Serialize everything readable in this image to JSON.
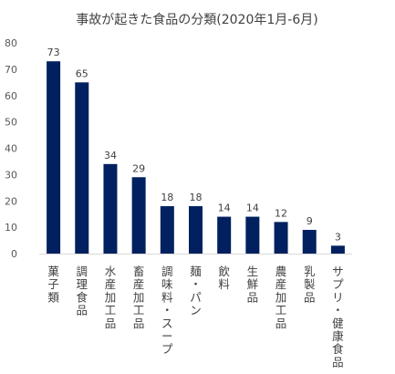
{
  "chart_data": {
    "type": "bar",
    "title": "事故が起きた食品の分類(2020年1月-6月)",
    "categories": [
      "菓子類",
      "調理食品",
      "水産加工品",
      "畜産加工品",
      "調味料・スープ",
      "麺・パン",
      "飲料",
      "生鮮品",
      "農産加工品",
      "乳製品",
      "サプリ・健康食品"
    ],
    "values": [
      73,
      65,
      34,
      29,
      18,
      18,
      14,
      14,
      12,
      9,
      3
    ],
    "ylim": [
      0,
      80
    ],
    "yticks": [
      0,
      10,
      20,
      30,
      40,
      50,
      60,
      70,
      80
    ],
    "grid": false,
    "legend": "none",
    "bar_color": "#002060",
    "axis_color": "#d9d9d9"
  }
}
